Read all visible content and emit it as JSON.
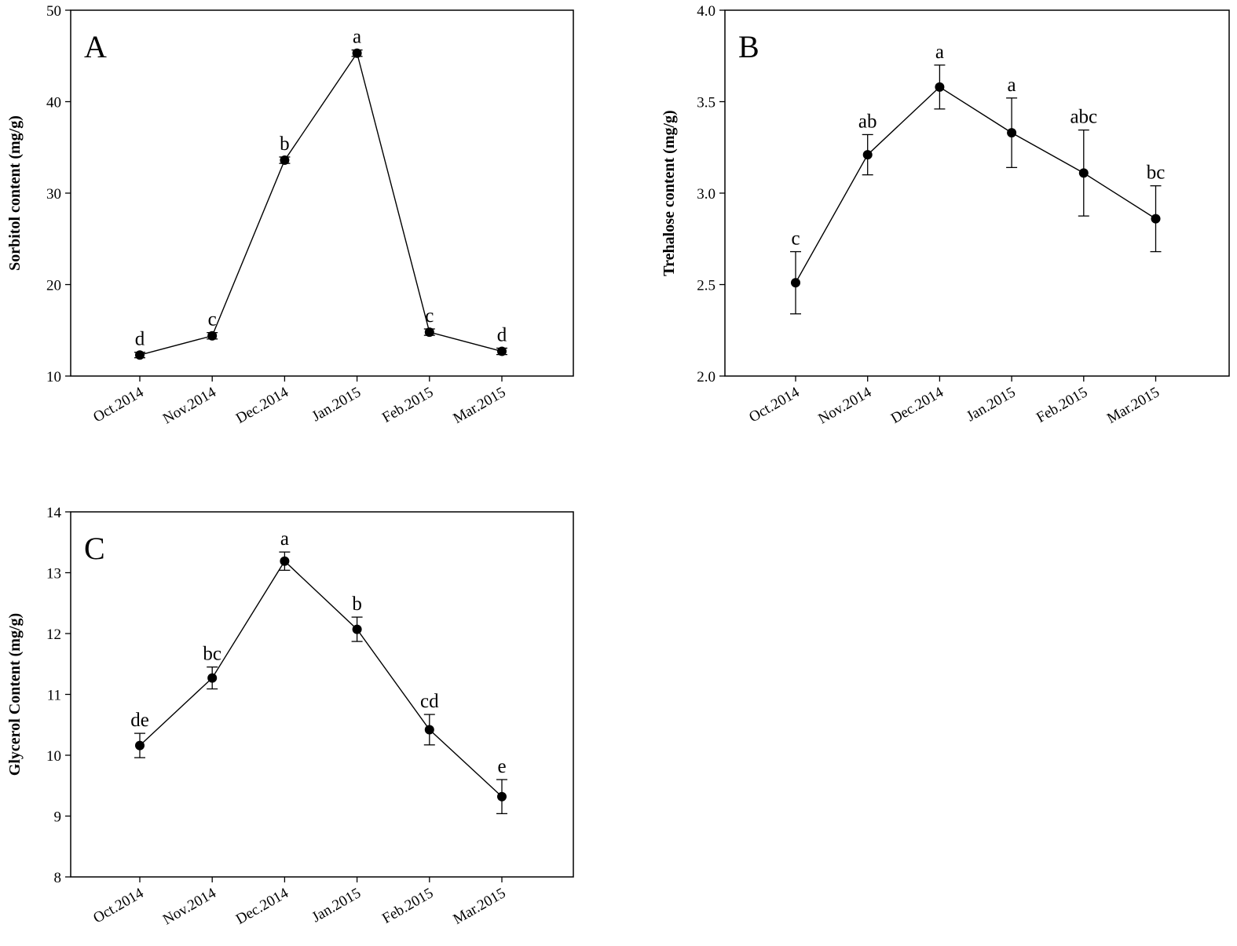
{
  "chart_data": [
    {
      "id": "A",
      "type": "line",
      "panel_label": "A",
      "title": "",
      "xlabel": "",
      "ylabel": "Sorbitol content (mg/g)",
      "categories": [
        "Oct.2014",
        "Nov.2014",
        "Dec.2014",
        "Jan.2015",
        "Feb.2015",
        "Mar.2015"
      ],
      "values": [
        12.3,
        14.4,
        33.6,
        45.3,
        14.8,
        12.7
      ],
      "errors": [
        0.3,
        0.35,
        0.35,
        0.35,
        0.35,
        0.35
      ],
      "significance": [
        "d",
        "c",
        "b",
        "a",
        "c",
        "d"
      ],
      "ylim": [
        10,
        50
      ],
      "yticks": [
        10,
        20,
        30,
        40,
        50
      ],
      "grid": false
    },
    {
      "id": "B",
      "type": "line",
      "panel_label": "B",
      "title": "",
      "xlabel": "",
      "ylabel": "Trehalose content (mg/g)",
      "categories": [
        "Oct.2014",
        "Nov.2014",
        "Dec.2014",
        "Jan.2015",
        "Feb.2015",
        "Mar.2015"
      ],
      "values": [
        2.51,
        3.21,
        3.58,
        3.33,
        3.11,
        2.86
      ],
      "errors": [
        0.17,
        0.11,
        0.12,
        0.19,
        0.235,
        0.18
      ],
      "significance": [
        "c",
        "ab",
        "a",
        "a",
        "abc",
        "bc"
      ],
      "ylim": [
        2.0,
        4.0
      ],
      "yticks": [
        "2.0",
        "2.5",
        "3.0",
        "3.5",
        "4.0"
      ],
      "grid": false
    },
    {
      "id": "C",
      "type": "line",
      "panel_label": "C",
      "title": "",
      "xlabel": "",
      "ylabel": "Glycerol Content (mg/g)",
      "categories": [
        "Oct.2014",
        "Nov.2014",
        "Dec.2014",
        "Jan.2015",
        "Feb.2015",
        "Mar.2015"
      ],
      "values": [
        10.16,
        11.27,
        13.19,
        12.07,
        10.42,
        9.32
      ],
      "errors": [
        0.2,
        0.18,
        0.15,
        0.2,
        0.25,
        0.28
      ],
      "significance": [
        "de",
        "bc",
        "a",
        "b",
        "cd",
        "e"
      ],
      "ylim": [
        8,
        14
      ],
      "yticks": [
        8,
        9,
        10,
        11,
        12,
        13,
        14
      ],
      "grid": false
    }
  ]
}
